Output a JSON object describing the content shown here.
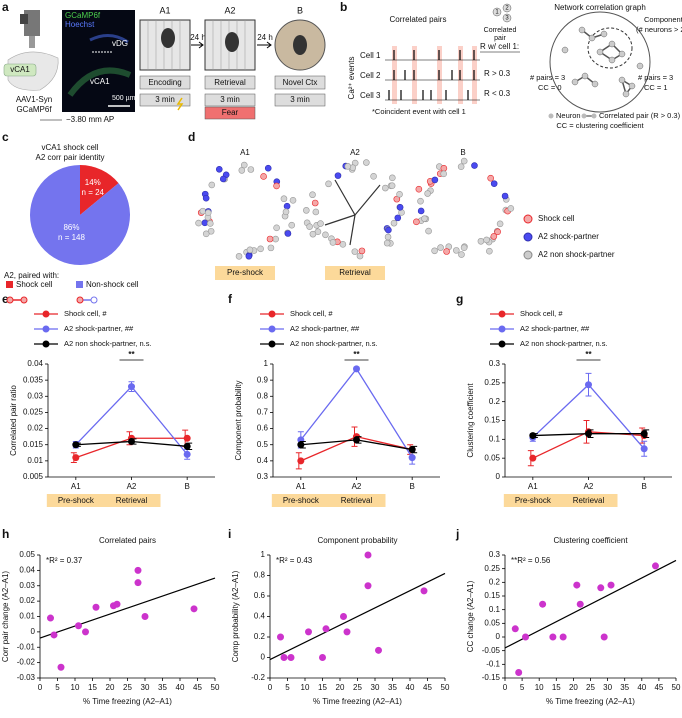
{
  "panel_labels": [
    "a",
    "b",
    "c",
    "d",
    "e",
    "f",
    "g",
    "h",
    "i",
    "j"
  ],
  "panel_a": {
    "implant": "vCA1",
    "virus": [
      "AAV1-Syn",
      "GCaMP6f"
    ],
    "stain": [
      "GCaMP6f",
      "Hoechst"
    ],
    "regions": [
      "vDG",
      "vCA1"
    ],
    "scale_bar": "500 µm",
    "ap": "−3.80 mm AP",
    "sessions": [
      {
        "name": "A1",
        "phase": "Encoding",
        "duration": "3 min"
      },
      {
        "name": "A2",
        "phase": "Retrieval",
        "duration": "3 min",
        "tag": "Fear"
      },
      {
        "name": "B",
        "phase": "Novel Ctx",
        "duration": "3 min"
      }
    ],
    "interval": [
      "24 h",
      "24 h"
    ]
  },
  "panel_b": {
    "title": "Correlated pairs",
    "ylabel": "Ca²⁺ events",
    "cells": [
      "Cell 1",
      "Cell 2",
      "Cell 3"
    ],
    "r_header": "R w/ cell 1:",
    "r_labels": [
      "R > 0.3",
      "R < 0.3"
    ],
    "footnote": "*Coincident event with cell 1",
    "pair_icon": [
      "1",
      "2",
      "3"
    ],
    "pair_label": [
      "Correlated",
      "pair"
    ],
    "graph_title": "Network correlation graph",
    "component": [
      "Component",
      "(# neurons > 2)"
    ],
    "examples": [
      [
        "# pairs = 3",
        "CC = 0"
      ],
      [
        "# pairs = 3",
        "CC = 1"
      ]
    ],
    "legend": [
      "Neuron",
      "Correlated pair (R > 0.3)"
    ],
    "cc_note": "CC = clustering coefficient"
  },
  "panel_d": {
    "sessions": [
      "A1",
      "A2",
      "B"
    ],
    "legend": [
      "Shock cell",
      "A2 shock-partner",
      "A2 non shock-partner"
    ],
    "phases": [
      "Pre-shock",
      "Retrieval"
    ]
  },
  "chart_data": [
    {
      "type": "pie",
      "title": [
        "vCA1 shock cell",
        "A2 corr pair identity"
      ],
      "categories": [
        "Shock cell",
        "Non-shock cell"
      ],
      "values": [
        14,
        86
      ],
      "value_labels": [
        "14%",
        "86%"
      ],
      "n_labels": [
        "n = 24",
        "n = 148"
      ],
      "colors": [
        "#e8262a",
        "#7474ee"
      ],
      "legend_title": "A2, paired with:"
    },
    {
      "type": "line",
      "ylabel": "Correlated pair ratio",
      "categories": [
        "A1",
        "A2",
        "B"
      ],
      "phase_labels": [
        "Pre-shock",
        "Retrieval"
      ],
      "annotation": "**",
      "ylim": [
        0.005,
        0.04
      ],
      "yticks": [
        0.005,
        0.01,
        0.015,
        0.02,
        0.025,
        0.03,
        0.035,
        0.04
      ],
      "series": [
        {
          "name": "Shock cell, #",
          "color": "#e8262a",
          "values": [
            0.011,
            0.017,
            0.017
          ],
          "errors": [
            0.0015,
            0.002,
            0.0025
          ]
        },
        {
          "name": "A2 shock-partner, ##",
          "color": "#6a6af0",
          "values": [
            0.015,
            0.033,
            0.012
          ],
          "errors": [
            0.001,
            0.0015,
            0.0015
          ]
        },
        {
          "name": "A2 non shock-partner, n.s.",
          "color": "#000000",
          "values": [
            0.015,
            0.016,
            0.0145
          ],
          "errors": [
            0.0005,
            0.0008,
            0.001
          ]
        }
      ]
    },
    {
      "type": "line",
      "ylabel": "Component probability",
      "categories": [
        "A1",
        "A2",
        "B"
      ],
      "phase_labels": [
        "Pre-shock",
        "Retrieval"
      ],
      "annotation": "**",
      "ylim": [
        0.3,
        1
      ],
      "yticks": [
        0.3,
        0.4,
        0.5,
        0.6,
        0.7,
        0.8,
        0.9,
        1
      ],
      "series": [
        {
          "name": "Shock cell, #",
          "color": "#e8262a",
          "values": [
            0.4,
            0.55,
            0.47
          ],
          "errors": [
            0.05,
            0.06,
            0.03
          ]
        },
        {
          "name": "A2 shock-partner, ##",
          "color": "#6a6af0",
          "values": [
            0.53,
            0.97,
            0.42
          ],
          "errors": [
            0.05,
            0.01,
            0.04
          ]
        },
        {
          "name": "A2 non shock-partner, n.s.",
          "color": "#000000",
          "values": [
            0.5,
            0.53,
            0.47
          ],
          "errors": [
            0.02,
            0.02,
            0.02
          ]
        }
      ]
    },
    {
      "type": "line",
      "ylabel": "Clustering coefficient",
      "categories": [
        "A1",
        "A2",
        "B"
      ],
      "phase_labels": [
        "Pre-shock",
        "Retrieval"
      ],
      "annotation": "**",
      "ylim": [
        0,
        0.3
      ],
      "yticks": [
        0,
        0.05,
        0.1,
        0.15,
        0.2,
        0.25,
        0.3
      ],
      "series": [
        {
          "name": "Shock cell, #",
          "color": "#e8262a",
          "values": [
            0.05,
            0.12,
            0.11
          ],
          "errors": [
            0.02,
            0.03,
            0.02
          ]
        },
        {
          "name": "A2 shock-partner, ##",
          "color": "#6a6af0",
          "values": [
            0.105,
            0.245,
            0.075
          ],
          "errors": [
            0.01,
            0.03,
            0.02
          ]
        },
        {
          "name": "A2 non shock-partner, n.s.",
          "color": "#000000",
          "values": [
            0.11,
            0.115,
            0.115
          ],
          "errors": [
            0.005,
            0.01,
            0.01
          ]
        }
      ]
    },
    {
      "type": "scatter",
      "title": "Correlated pairs",
      "xlabel": "% Time freezing (A2–A1)",
      "ylabel": "Corr pair change (A2–A1)",
      "annotation": "*R² = 0.37",
      "color": "#cc33cc",
      "x": [
        3,
        4,
        6,
        11,
        13,
        16,
        21,
        22,
        28,
        28,
        30,
        44
      ],
      "values": [
        0.009,
        -0.002,
        -0.023,
        0.004,
        0,
        0.016,
        0.017,
        0.018,
        0.04,
        0.032,
        0.01,
        0.015
      ],
      "fit_x": [
        0,
        50
      ],
      "fit_y": [
        -0.004,
        0.035
      ],
      "xlim": [
        0,
        50
      ],
      "xticks": [
        0,
        5,
        10,
        15,
        20,
        25,
        30,
        35,
        40,
        45,
        50
      ],
      "ylim": [
        -0.03,
        0.05
      ],
      "yticks": [
        -0.03,
        -0.02,
        -0.01,
        0,
        0.01,
        0.02,
        0.03,
        0.04,
        0.05
      ]
    },
    {
      "type": "scatter",
      "title": "Component probability",
      "xlabel": "% Time freezing (A2–A1)",
      "ylabel": "Comp probability (A2–A1)",
      "annotation": "*R² = 0.43",
      "color": "#cc33cc",
      "x": [
        3,
        4,
        6,
        11,
        15,
        16,
        21,
        22,
        28,
        28,
        31,
        44
      ],
      "values": [
        0.2,
        0,
        0,
        0.25,
        0,
        0.28,
        0.4,
        0.25,
        1,
        0.7,
        0.07,
        0.65
      ],
      "fit_x": [
        0,
        50
      ],
      "fit_y": [
        -0.02,
        0.82
      ],
      "xlim": [
        0,
        50
      ],
      "xticks": [
        0,
        5,
        10,
        15,
        20,
        25,
        30,
        35,
        40,
        45,
        50
      ],
      "ylim": [
        -0.2,
        1
      ],
      "yticks": [
        -0.2,
        0,
        0.2,
        0.4,
        0.6,
        0.8,
        1
      ]
    },
    {
      "type": "scatter",
      "title": "Clustering coefficient",
      "xlabel": "% Time freezing (A2–A1)",
      "ylabel": "CC change (A2–A1)",
      "annotation": "**R² = 0.56",
      "color": "#cc33cc",
      "x": [
        3,
        4,
        6,
        11,
        14,
        17,
        21,
        22,
        28,
        29,
        31,
        44
      ],
      "values": [
        0.03,
        -0.13,
        0,
        0.12,
        0,
        0,
        0.19,
        0.12,
        0.18,
        0,
        0.19,
        0.26
      ],
      "fit_x": [
        0,
        50
      ],
      "fit_y": [
        -0.04,
        0.28
      ],
      "xlim": [
        0,
        50
      ],
      "xticks": [
        0,
        5,
        10,
        15,
        20,
        25,
        30,
        35,
        40,
        45,
        50
      ],
      "ylim": [
        -0.15,
        0.3
      ],
      "yticks": [
        -0.15,
        -0.1,
        -0.05,
        0,
        0.05,
        0.1,
        0.15,
        0.2,
        0.25,
        0.3
      ]
    }
  ]
}
